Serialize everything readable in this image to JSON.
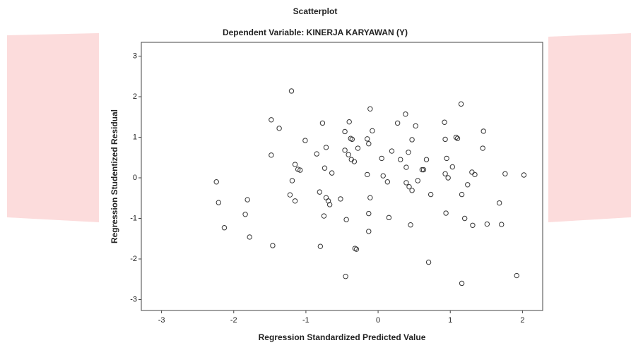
{
  "chart_data": {
    "type": "scatter",
    "title": "Scatterplot",
    "subtitle": "Dependent Variable: KINERJA KARYAWAN (Y)",
    "x_label": "Regression Standardized Predicted Value",
    "y_label": "Regression Studentized Residual",
    "xlim": [
      -3.28,
      2.28
    ],
    "ylim": [
      -3.27,
      3.34
    ],
    "xticks": [
      -3,
      -2,
      -1,
      0,
      1,
      2
    ],
    "yticks": [
      -3,
      -2,
      -1,
      0,
      1,
      2,
      3
    ],
    "grid": false,
    "color": "#333333",
    "x": [
      -2.24,
      -2.21,
      -2.13,
      -1.81,
      -1.84,
      -1.78,
      -1.48,
      -1.48,
      -1.46,
      -1.37,
      -1.15,
      -1.19,
      -1.11,
      -1.08,
      -1.22,
      -1.15,
      -1.01,
      -0.85,
      -0.72,
      -0.64,
      -0.74,
      -0.81,
      -0.72,
      -0.69,
      -0.67,
      -0.75,
      -0.8,
      -1.2,
      -0.77,
      -0.4,
      -0.46,
      -0.38,
      -0.36,
      -0.28,
      -0.46,
      -0.41,
      -0.37,
      -0.33,
      -0.52,
      -0.44,
      -0.45,
      -0.32,
      -0.3,
      -0.15,
      -0.13,
      -0.08,
      -0.11,
      -0.15,
      -0.11,
      -0.13,
      -0.13,
      0.05,
      0.07,
      0.13,
      0.15,
      0.19,
      0.27,
      0.31,
      0.38,
      0.39,
      0.42,
      0.39,
      0.43,
      0.47,
      0.45,
      0.47,
      0.52,
      0.55,
      0.63,
      0.61,
      0.67,
      0.7,
      0.73,
      0.92,
      0.93,
      0.93,
      0.95,
      0.97,
      1.03,
      0.94,
      1.08,
      1.1,
      1.15,
      1.16,
      1.2,
      1.24,
      1.3,
      1.34,
      1.31,
      1.46,
      1.45,
      1.51,
      1.68,
      1.71,
      1.76,
      2.02,
      1.92,
      1.16
    ],
    "values": [
      -0.1,
      -0.61,
      -1.23,
      -0.54,
      -0.9,
      -1.46,
      1.43,
      0.56,
      -1.67,
      1.22,
      0.33,
      -0.07,
      0.21,
      0.19,
      -0.42,
      -0.57,
      0.92,
      0.59,
      0.75,
      0.12,
      0.24,
      -0.35,
      -0.49,
      -0.57,
      -0.66,
      -0.94,
      -1.69,
      2.14,
      1.35,
      1.38,
      1.14,
      0.97,
      0.95,
      0.73,
      0.68,
      0.57,
      0.45,
      0.4,
      -0.52,
      -1.03,
      -2.43,
      -1.74,
      -1.76,
      0.96,
      0.84,
      1.16,
      1.7,
      0.08,
      -0.49,
      -0.88,
      -1.32,
      0.48,
      0.05,
      -0.1,
      -0.98,
      0.66,
      1.35,
      0.45,
      1.57,
      0.26,
      0.63,
      -0.12,
      -0.22,
      -0.31,
      -1.16,
      0.94,
      1.28,
      -0.07,
      0.2,
      0.2,
      0.45,
      -2.08,
      -0.41,
      1.37,
      0.95,
      0.1,
      0.48,
      0.0,
      0.27,
      -0.87,
      1.0,
      0.97,
      1.82,
      -0.41,
      -1.0,
      -0.17,
      0.14,
      0.08,
      -1.17,
      1.15,
      0.73,
      -1.14,
      -0.62,
      -1.15,
      0.1,
      0.07,
      -2.41,
      -2.6
    ]
  }
}
